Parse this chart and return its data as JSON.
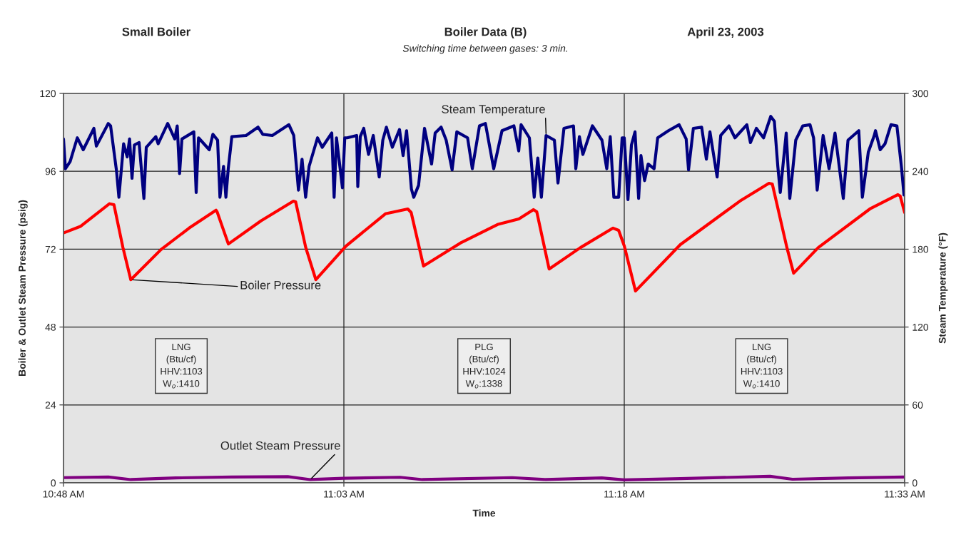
{
  "chart_data": {
    "type": "line",
    "title": "Boiler Data (B)",
    "subtitle": "Switching time between gases: 3 min.",
    "xlabel": "Time",
    "ylabel": "Boiler & Outlet Steam Pressure (psig)",
    "y2label": "Steam Temperature (°F)",
    "annotations": [
      "Small Boiler",
      "April 23, 2003",
      "LNG\n(Btu/cf)\nHHV:1103\nW$_{o}$:1410",
      "PLG\n(Btu/cf)\nHHV:1024\nW$_{o}$:1338",
      "LNG\n(Btu/cf)\nHHV:1103\nW$_{o}$:1410"
    ],
    "xlim": [
      10.8,
      11.55
    ],
    "xticks": [
      {
        "value": 10.8,
        "label": "10:48 AM"
      },
      {
        "value": 11.05,
        "label": "11:03 AM"
      },
      {
        "value": 11.3,
        "label": "11:18 AM"
      },
      {
        "value": 11.55,
        "label": "11:33 AM"
      }
    ],
    "ylim": [
      0,
      120
    ],
    "yticks": [
      0,
      24,
      48,
      72,
      96,
      120
    ],
    "y2lim": [
      0,
      300
    ],
    "y2ticks": [
      0,
      60,
      120,
      180,
      240,
      300
    ],
    "grid": true,
    "legend": false,
    "line_style": "solid",
    "marker": "none",
    "series": [
      {
        "name": "Steam Temperature",
        "color": "#000080",
        "axis": "y2",
        "x": [
          10.8,
          10.8017,
          10.8059,
          10.8123,
          10.8176,
          10.8271,
          10.8293,
          10.8399,
          10.842,
          10.8473,
          10.8494,
          10.8536,
          10.8568,
          10.8589,
          10.8611,
          10.8632,
          10.8674,
          10.8717,
          10.8738,
          10.8823,
          10.8844,
          10.8929,
          10.8992,
          10.9014,
          10.9035,
          10.9056,
          10.9162,
          10.9183,
          10.9204,
          10.93,
          10.9332,
          10.9374,
          10.9395,
          10.9427,
          10.9448,
          10.9469,
          10.9501,
          10.9628,
          10.9735,
          10.9777,
          10.9862,
          11.001,
          11.0053,
          11.0095,
          11.0127,
          11.0159,
          11.019,
          11.0265,
          11.0307,
          11.0392,
          11.0413,
          11.0434,
          11.0487,
          11.0508,
          11.0529,
          11.0614,
          11.0624,
          11.0646,
          11.0677,
          11.072,
          11.0762,
          11.0815,
          11.0847,
          11.0879,
          11.0932,
          11.0996,
          11.1028,
          11.1059,
          11.1102,
          11.1123,
          11.1166,
          11.1219,
          11.1282,
          11.1314,
          11.1367,
          11.1412,
          11.1465,
          11.1507,
          11.1603,
          11.1645,
          11.1709,
          11.1762,
          11.1836,
          11.191,
          11.2016,
          11.2059,
          11.208,
          11.2154,
          11.2197,
          11.2229,
          11.2261,
          11.2303,
          11.2377,
          11.2409,
          11.2462,
          11.2547,
          11.2568,
          11.26,
          11.2631,
          11.2716,
          11.2801,
          11.2844,
          11.2875,
          11.2907,
          11.295,
          11.2981,
          11.3,
          11.3033,
          11.3064,
          11.3096,
          11.3128,
          11.3149,
          11.3181,
          11.3213,
          11.3266,
          11.3298,
          11.3394,
          11.3489,
          11.3552,
          11.3573,
          11.3616,
          11.369,
          11.3732,
          11.3764,
          11.3828,
          11.386,
          11.3934,
          11.3987,
          11.4093,
          11.4125,
          11.4178,
          11.4242,
          11.4306,
          11.4338,
          11.4369,
          11.4391,
          11.4444,
          11.4476,
          11.4529,
          11.4592,
          11.4656,
          11.4688,
          11.472,
          11.4773,
          11.4826,
          11.4879,
          11.4953,
          11.4995,
          11.5091,
          11.5123,
          11.5176,
          11.5229,
          11.524,
          11.5282,
          11.5325,
          11.5378,
          11.5431,
          11.5473,
          11.5494,
          11.55
        ],
        "values": [
          264.9,
          242.0,
          247.5,
          265.8,
          256.6,
          273.1,
          259.4,
          276.8,
          275.0,
          240.1,
          220.0,
          261.2,
          251.1,
          264.9,
          234.6,
          260.3,
          262.1,
          219.1,
          258.5,
          266.7,
          261.2,
          276.8,
          264.9,
          275.0,
          238.3,
          264.9,
          270.4,
          223.7,
          265.8,
          256.6,
          268.5,
          264.0,
          220.0,
          243.8,
          220.0,
          242.0,
          266.7,
          267.6,
          274.0,
          268.5,
          267.6,
          275.9,
          267.6,
          225.5,
          249.3,
          220.0,
          243.8,
          265.8,
          258.5,
          269.5,
          220.0,
          265.8,
          227.3,
          265.8,
          265.8,
          267.6,
          228.2,
          266.7,
          273.1,
          253.0,
          267.6,
          235.6,
          264.0,
          274.0,
          258.5,
          272.2,
          252.1,
          271.3,
          226.4,
          220.0,
          229.2,
          273.1,
          245.6,
          269.5,
          274.0,
          264.0,
          241.1,
          270.4,
          265.8,
          242.0,
          275.0,
          276.8,
          242.0,
          271.3,
          275.0,
          255.7,
          275.9,
          265.8,
          220.0,
          250.2,
          220.0,
          267.6,
          264.0,
          231.0,
          273.1,
          275.0,
          242.0,
          266.7,
          253.0,
          275.0,
          264.0,
          242.0,
          266.7,
          220.0,
          220.0,
          265.8,
          265.8,
          218.2,
          260.3,
          270.4,
          219.1,
          252.1,
          232.8,
          245.6,
          242.0,
          265.8,
          271.3,
          275.9,
          264.9,
          241.1,
          273.1,
          274.0,
          249.3,
          270.4,
          235.6,
          267.6,
          275.0,
          265.8,
          275.9,
          262.1,
          273.1,
          265.8,
          282.3,
          278.6,
          243.8,
          223.7,
          269.5,
          219.1,
          264.0,
          275.0,
          275.9,
          265.8,
          225.5,
          267.6,
          242.0,
          269.5,
          219.1,
          264.0,
          271.3,
          220.0,
          254.8,
          267.6,
          271.3,
          256.6,
          261.2,
          275.9,
          275.0,
          242.0,
          221.8,
          227.3
        ]
      },
      {
        "name": "Boiler Pressure",
        "color": "#ff0000",
        "x": [
          10.8,
          10.815,
          10.841,
          10.845,
          10.853,
          10.86,
          10.887,
          10.912,
          10.936,
          10.937,
          10.947,
          10.976,
          11.005,
          11.007,
          11.016,
          11.025,
          11.052,
          11.087,
          11.107,
          11.11,
          11.121,
          11.155,
          11.187,
          11.206,
          11.219,
          11.222,
          11.233,
          11.261,
          11.29,
          11.295,
          11.3,
          11.31,
          11.35,
          11.403,
          11.429,
          11.432,
          11.445,
          11.451,
          11.473,
          11.519,
          11.544,
          11.546,
          11.55
        ],
        "values": [
          77.0,
          79.0,
          86.0,
          85.7,
          72.5,
          62.6,
          71.9,
          78.5,
          84.0,
          83.5,
          73.6,
          80.7,
          86.8,
          86.6,
          72.5,
          62.6,
          73.0,
          82.9,
          84.4,
          83.3,
          66.8,
          74.1,
          79.6,
          81.3,
          84.2,
          83.5,
          65.9,
          72.5,
          78.5,
          77.8,
          73.0,
          59.1,
          73.4,
          86.8,
          92.3,
          92.1,
          72.5,
          64.6,
          72.5,
          84.4,
          88.8,
          88.4,
          83.3
        ]
      },
      {
        "name": "Outlet Steam Pressure",
        "color": "#800080",
        "x": [
          10.8,
          10.84,
          10.86,
          10.9,
          10.95,
          11.0,
          11.02,
          11.05,
          11.1,
          11.12,
          11.2,
          11.23,
          11.28,
          11.3,
          11.35,
          11.43,
          11.45,
          11.5,
          11.55
        ],
        "values": [
          1.6,
          1.8,
          1.0,
          1.5,
          1.8,
          1.9,
          1.0,
          1.4,
          1.7,
          1.0,
          1.6,
          1.0,
          1.5,
          0.9,
          1.3,
          2.0,
          1.1,
          1.5,
          1.8
        ]
      }
    ]
  }
}
